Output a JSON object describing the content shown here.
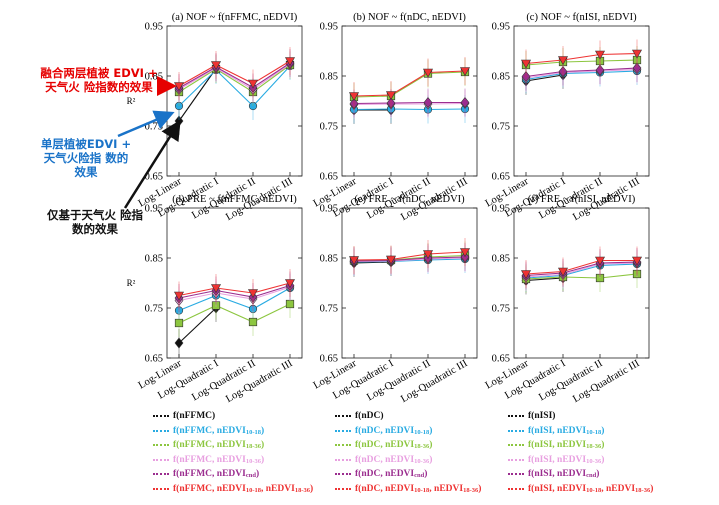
{
  "chart_data": [
    {
      "type": "line",
      "title": "(a) NOF ~ f(nFFMC, nEDVI)",
      "ylabel": "R²",
      "ylim": [
        0.65,
        0.95
      ],
      "categories": [
        "Log-Linear",
        "Log-Quadratic I",
        "Log-Quadratic II",
        "Log-Quadratic III"
      ],
      "series": [
        {
          "name": "f(nFFMC)",
          "values": [
            0.76,
            0.865,
            null,
            null
          ]
        },
        {
          "name": "f(nFFMC, nEDVI10-18)",
          "values": [
            0.79,
            0.862,
            0.79,
            0.87
          ]
        },
        {
          "name": "f(nFFMC, nEDVI18-36)",
          "values": [
            0.818,
            0.864,
            0.818,
            0.872
          ]
        },
        {
          "name": "f(nFFMC, nEDVI10-36)",
          "values": [
            0.823,
            0.866,
            0.823,
            0.874
          ]
        },
        {
          "name": "f(nFFMC, nEDVIcnd)",
          "values": [
            0.826,
            0.868,
            0.827,
            0.876
          ]
        },
        {
          "name": "f(nFFMC, nEDVI10-18, nEDVI18-36)",
          "values": [
            0.83,
            0.872,
            0.835,
            0.88
          ]
        }
      ]
    },
    {
      "type": "line",
      "title": "(b) NOF ~ f(nDC, nEDVI)",
      "ylabel": "",
      "ylim": [
        0.65,
        0.95
      ],
      "categories": [
        "Log-Linear",
        "Log-Quadratic I",
        "Log-Quadratic II",
        "Log-Quadratic III"
      ],
      "series": [
        {
          "name": "f(nDC)",
          "values": [
            0.782,
            0.782,
            null,
            null
          ]
        },
        {
          "name": "f(nDC, nEDVI10-18)",
          "values": [
            0.783,
            0.784,
            0.783,
            0.784
          ]
        },
        {
          "name": "f(nDC, nEDVI18-36)",
          "values": [
            0.808,
            0.81,
            0.855,
            0.858
          ]
        },
        {
          "name": "f(nDC, nEDVI10-36)",
          "values": [
            0.793,
            0.794,
            0.794,
            0.795
          ]
        },
        {
          "name": "f(nDC, nEDVIcnd)",
          "values": [
            0.795,
            0.796,
            0.797,
            0.797
          ]
        },
        {
          "name": "f(nDC, nEDVI10-18, nEDVI18-36)",
          "values": [
            0.81,
            0.812,
            0.857,
            0.86
          ]
        }
      ]
    },
    {
      "type": "line",
      "title": "(c) NOF ~ f(nISI, nEDVI)",
      "ylabel": "",
      "ylim": [
        0.65,
        0.95
      ],
      "categories": [
        "Log-Linear",
        "Log-Quadratic I",
        "Log-Quadratic II",
        "Log-Quadratic III"
      ],
      "series": [
        {
          "name": "f(nISI)",
          "values": [
            0.84,
            0.852,
            null,
            null
          ]
        },
        {
          "name": "f(nISI, nEDVI10-18)",
          "values": [
            0.843,
            0.855,
            0.857,
            0.86
          ]
        },
        {
          "name": "f(nISI, nEDVI18-36)",
          "values": [
            0.872,
            0.878,
            0.88,
            0.882
          ]
        },
        {
          "name": "f(nISI, nEDVI10-36)",
          "values": [
            0.846,
            0.857,
            0.86,
            0.863
          ]
        },
        {
          "name": "f(nISI, nEDVIcnd)",
          "values": [
            0.849,
            0.859,
            0.862,
            0.866
          ]
        },
        {
          "name": "f(nISI, nEDVI10-18, nEDVI18-36)",
          "values": [
            0.875,
            0.882,
            0.893,
            0.895
          ]
        }
      ]
    },
    {
      "type": "line",
      "title": "(d) FRE ~ f(nFFMC, nEDVI)",
      "ylabel": "R²",
      "ylim": [
        0.65,
        0.95
      ],
      "categories": [
        "Log-Linear",
        "Log-Quadratic I",
        "Log-Quadratic II",
        "Log-Quadratic III"
      ],
      "series": [
        {
          "name": "f(nFFMC)",
          "values": [
            0.68,
            0.75,
            null,
            null
          ]
        },
        {
          "name": "f(nFFMC, nEDVI10-18)",
          "values": [
            0.745,
            0.775,
            0.748,
            0.79
          ]
        },
        {
          "name": "f(nFFMC, nEDVI18-36)",
          "values": [
            0.72,
            0.755,
            0.722,
            0.758
          ]
        },
        {
          "name": "f(nFFMC, nEDVI10-36)",
          "values": [
            0.765,
            0.78,
            0.768,
            0.792
          ]
        },
        {
          "name": "f(nFFMC, nEDVIcnd)",
          "values": [
            0.77,
            0.785,
            0.772,
            0.795
          ]
        },
        {
          "name": "f(nFFMC, nEDVI10-18, nEDVI18-36)",
          "values": [
            0.775,
            0.79,
            0.78,
            0.8
          ]
        }
      ]
    },
    {
      "type": "line",
      "title": "(e) FRE ~ f(nDC, nEDVI)",
      "ylabel": "",
      "ylim": [
        0.65,
        0.95
      ],
      "categories": [
        "Log-Linear",
        "Log-Quadratic I",
        "Log-Quadratic II",
        "Log-Quadratic III"
      ],
      "series": [
        {
          "name": "f(nDC)",
          "values": [
            0.84,
            0.842,
            null,
            null
          ]
        },
        {
          "name": "f(nDC, nEDVI10-18)",
          "values": [
            0.842,
            0.843,
            0.846,
            0.848
          ]
        },
        {
          "name": "f(nDC, nEDVI18-36)",
          "values": [
            0.845,
            0.846,
            0.852,
            0.855
          ]
        },
        {
          "name": "f(nDC, nEDVI10-36)",
          "values": [
            0.843,
            0.844,
            0.848,
            0.85
          ]
        },
        {
          "name": "f(nDC, nEDVIcnd)",
          "values": [
            0.844,
            0.845,
            0.85,
            0.852
          ]
        },
        {
          "name": "f(nDC, nEDVI10-18, nEDVI18-36)",
          "values": [
            0.846,
            0.847,
            0.858,
            0.862
          ]
        }
      ]
    },
    {
      "type": "line",
      "title": "(f) FRE ~ f(nISI, nEDVI)",
      "ylabel": "",
      "ylim": [
        0.65,
        0.95
      ],
      "categories": [
        "Log-Linear",
        "Log-Quadratic I",
        "Log-Quadratic II",
        "Log-Quadratic III"
      ],
      "series": [
        {
          "name": "f(nISI)",
          "values": [
            0.805,
            0.81,
            null,
            null
          ]
        },
        {
          "name": "f(nISI, nEDVI10-18)",
          "values": [
            0.81,
            0.815,
            0.835,
            0.838
          ]
        },
        {
          "name": "f(nISI, nEDVI18-36)",
          "values": [
            0.808,
            0.812,
            0.81,
            0.818
          ]
        },
        {
          "name": "f(nISI, nEDVI10-36)",
          "values": [
            0.812,
            0.817,
            0.838,
            0.84
          ]
        },
        {
          "name": "f(nISI, nEDVIcnd)",
          "values": [
            0.815,
            0.82,
            0.84,
            0.842
          ]
        },
        {
          "name": "f(nISI, nEDVI10-18, nEDVI18-36)",
          "values": [
            0.818,
            0.823,
            0.845,
            0.845
          ]
        }
      ]
    }
  ],
  "yticks": [
    "0.65",
    "0.75",
    "0.85",
    "0.95"
  ],
  "colors": [
    "#111111",
    "#29abe2",
    "#8cc63f",
    "#e8a0e0",
    "#9b2d8f",
    "#ee3333"
  ],
  "annotations": {
    "red": "融合两层植被 EDVI + 天气火 险指数的效果",
    "blue": "单层植被EDVI + 天气火险指 数的效果",
    "black": "仅基于天气火 险指数的效果"
  },
  "legend": [
    {
      "base": "f(nFFMC",
      "items": [
        ")",
        ", nEDVI|10-18|)",
        ", nEDVI|18-36|)",
        ", nEDVI|10-36|)",
        ", nEDVI|cnd|)",
        ", nEDVI|10-18|, nEDVI|18-36|)"
      ]
    },
    {
      "base": "f(nDC",
      "items": [
        ")",
        ", nEDVI|10-18|)",
        ", nEDVI|18-36|)",
        ", nEDVI|10-36|)",
        ", nEDVI|cnd|)",
        ", nEDVI|10-18|, nEDVI|18-36|)"
      ]
    },
    {
      "base": "f(nISI",
      "items": [
        ")",
        ", nEDVI|10-18|)",
        ", nEDVI|18-36|)",
        ", nEDVI|10-36|)",
        ", nEDVI|cnd|)",
        ", nEDVI|10-18|, nEDVI|18-36|)"
      ]
    }
  ]
}
